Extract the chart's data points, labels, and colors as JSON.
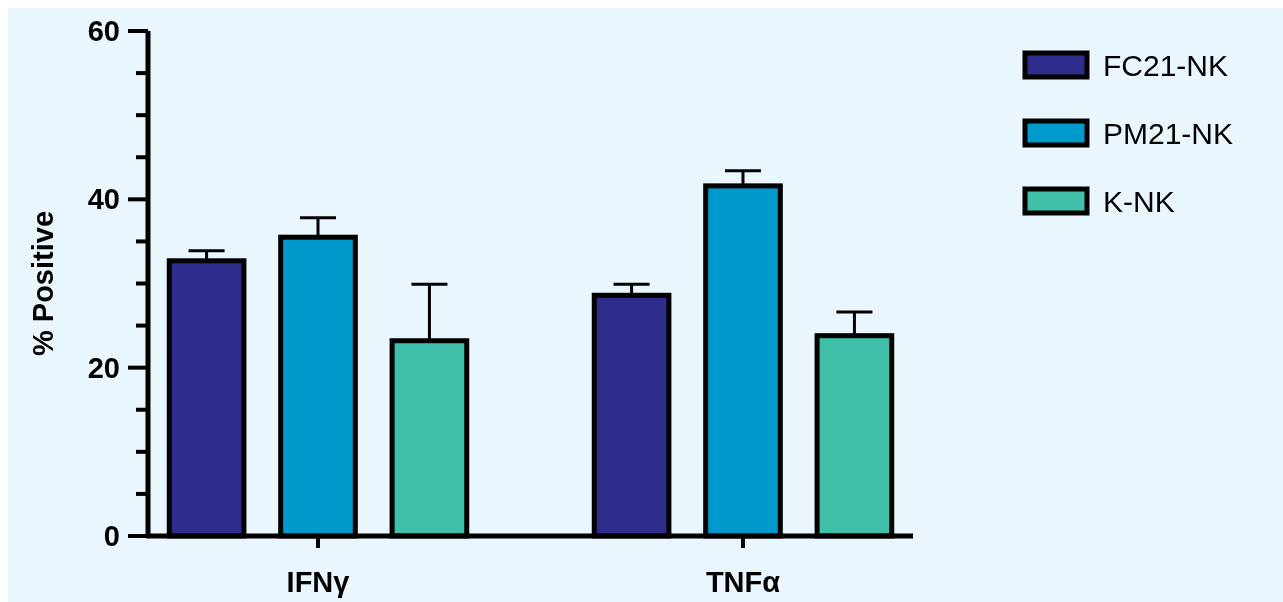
{
  "chart_data": {
    "type": "bar",
    "ylabel": "% Positive",
    "categories": [
      "IFNγ",
      "TNFα"
    ],
    "series": [
      {
        "name": "FC21-NK",
        "color": "#2e2d8c",
        "values": [
          32.7,
          28.6
        ],
        "errors": [
          [
            32.7,
            33.9
          ],
          [
            28.6,
            29.9
          ]
        ]
      },
      {
        "name": "PM21-NK",
        "color": "#0099cc",
        "values": [
          35.5,
          41.6
        ],
        "errors": [
          [
            35.5,
            37.8
          ],
          [
            41.6,
            43.4
          ]
        ]
      },
      {
        "name": "K-NK",
        "color": "#40c0a8",
        "values": [
          23.2,
          23.8
        ],
        "errors": [
          [
            23.2,
            29.9
          ],
          [
            23.8,
            26.6
          ]
        ]
      }
    ],
    "ylim": [
      0,
      60
    ],
    "yticks": [
      0,
      {
        "value": 5,
        "label": null
      },
      {
        "value": 10,
        "label": null
      },
      {
        "value": 15,
        "label": null
      },
      20,
      {
        "value": 25,
        "label": null
      },
      {
        "value": 30,
        "label": null
      },
      {
        "value": 35,
        "label": null
      },
      40,
      {
        "value": 45,
        "label": null
      },
      {
        "value": 50,
        "label": null
      },
      {
        "value": 55,
        "label": null
      },
      60
    ],
    "legend": "right",
    "grid": false
  }
}
